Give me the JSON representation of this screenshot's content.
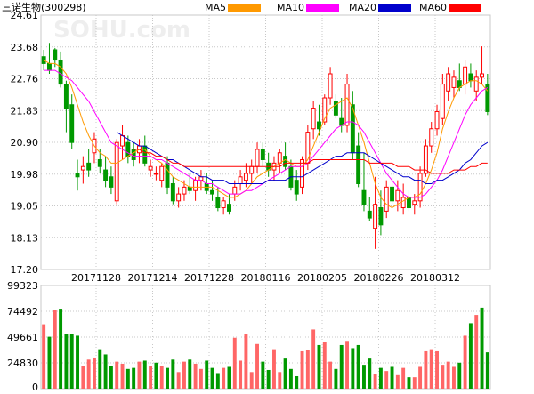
{
  "title": "三诺生物(300298)",
  "watermark": "SOHU.com",
  "legend": [
    {
      "label": "MA5",
      "color": "#ff9900"
    },
    {
      "label": "MA10",
      "color": "#ff00ff"
    },
    {
      "label": "MA20",
      "color": "#0000cc"
    },
    {
      "label": "MA60",
      "color": "#ff0000"
    }
  ],
  "colors": {
    "up": "#ff0000",
    "down": "#009900",
    "grid": "#c8c8c8",
    "axis": "#000000"
  },
  "chart_data": [
    {
      "type": "candlestick",
      "title": "三诺生物(300298)",
      "y_ticks": [
        "24.61",
        "23.68",
        "22.76",
        "21.83",
        "20.90",
        "19.98",
        "19.05",
        "18.13",
        "17.20"
      ],
      "ylim": [
        17.2,
        24.61
      ],
      "x_ticks": [
        "20171128",
        "20171214",
        "20171228",
        "20180116",
        "20180205",
        "20180226",
        "20180312"
      ],
      "grid": true,
      "ohlc": [
        [
          23.4,
          23.6,
          23.0,
          23.2
        ],
        [
          23.2,
          23.8,
          22.9,
          23.0
        ],
        [
          23.6,
          23.65,
          23.1,
          23.3
        ],
        [
          23.3,
          23.55,
          22.5,
          22.6
        ],
        [
          22.6,
          22.7,
          21.2,
          21.9
        ],
        [
          22.0,
          22.3,
          20.7,
          20.9
        ],
        [
          20.0,
          20.4,
          19.5,
          19.9
        ],
        [
          20.1,
          20.5,
          19.7,
          20.2
        ],
        [
          20.3,
          20.7,
          19.9,
          20.1
        ],
        [
          20.6,
          21.2,
          20.3,
          21.0
        ],
        [
          20.4,
          20.7,
          20.0,
          20.2
        ],
        [
          20.1,
          20.5,
          19.6,
          19.8
        ],
        [
          19.9,
          20.2,
          19.4,
          19.6
        ],
        [
          19.2,
          21.0,
          19.1,
          20.9
        ],
        [
          20.8,
          21.4,
          20.4,
          21.1
        ],
        [
          20.9,
          21.1,
          20.3,
          20.5
        ],
        [
          20.7,
          20.9,
          20.2,
          20.4
        ],
        [
          20.6,
          21.0,
          20.3,
          20.8
        ],
        [
          20.8,
          21.1,
          20.2,
          20.3
        ],
        [
          20.1,
          20.4,
          19.9,
          20.2
        ],
        [
          20.0,
          20.2,
          19.8,
          20.0
        ],
        [
          19.8,
          20.3,
          19.6,
          20.2
        ],
        [
          20.3,
          20.5,
          19.4,
          19.6
        ],
        [
          19.7,
          19.9,
          19.1,
          19.2
        ],
        [
          19.2,
          19.6,
          19.0,
          19.4
        ],
        [
          19.4,
          19.8,
          19.2,
          19.6
        ],
        [
          19.6,
          20.0,
          19.4,
          19.5
        ],
        [
          19.5,
          19.9,
          19.2,
          19.8
        ],
        [
          19.8,
          20.1,
          19.5,
          19.9
        ],
        [
          19.7,
          20.0,
          19.4,
          19.5
        ],
        [
          19.5,
          19.8,
          19.2,
          19.4
        ],
        [
          19.3,
          19.6,
          18.9,
          19.0
        ],
        [
          19.0,
          19.3,
          18.8,
          19.2
        ],
        [
          19.1,
          19.4,
          18.8,
          18.9
        ],
        [
          19.4,
          19.8,
          19.2,
          19.6
        ],
        [
          19.7,
          20.1,
          19.5,
          19.9
        ],
        [
          19.8,
          20.3,
          19.6,
          20.0
        ],
        [
          20.0,
          20.4,
          19.7,
          20.2
        ],
        [
          20.2,
          20.9,
          20.0,
          20.7
        ],
        [
          20.7,
          20.9,
          20.2,
          20.4
        ],
        [
          20.3,
          20.6,
          19.9,
          20.1
        ],
        [
          20.1,
          20.5,
          19.8,
          20.3
        ],
        [
          20.3,
          20.7,
          20.0,
          20.6
        ],
        [
          20.5,
          20.9,
          20.1,
          20.2
        ],
        [
          20.2,
          20.4,
          19.5,
          19.6
        ],
        [
          19.8,
          20.1,
          19.2,
          19.4
        ],
        [
          19.6,
          20.5,
          19.4,
          20.4
        ],
        [
          20.3,
          21.4,
          20.1,
          21.2
        ],
        [
          21.3,
          22.1,
          21.0,
          21.9
        ],
        [
          21.5,
          22.0,
          21.1,
          21.3
        ],
        [
          21.5,
          22.3,
          21.4,
          22.2
        ],
        [
          22.2,
          23.1,
          22.0,
          22.9
        ],
        [
          22.1,
          22.3,
          21.6,
          21.7
        ],
        [
          21.6,
          22.2,
          21.2,
          21.4
        ],
        [
          21.4,
          22.9,
          21.2,
          22.6
        ],
        [
          22.0,
          22.4,
          20.4,
          20.6
        ],
        [
          20.8,
          21.2,
          19.6,
          19.7
        ],
        [
          19.5,
          20.6,
          18.9,
          19.1
        ],
        [
          18.9,
          19.3,
          18.6,
          18.7
        ],
        [
          18.4,
          19.9,
          17.8,
          19.1
        ],
        [
          19.0,
          19.5,
          18.2,
          18.5
        ],
        [
          18.9,
          19.8,
          18.7,
          19.6
        ],
        [
          19.6,
          19.9,
          19.1,
          19.2
        ],
        [
          19.2,
          19.8,
          18.9,
          19.5
        ],
        [
          19.0,
          19.7,
          18.8,
          19.3
        ],
        [
          19.3,
          19.5,
          18.9,
          19.0
        ],
        [
          19.1,
          19.4,
          18.8,
          19.2
        ],
        [
          19.2,
          20.2,
          19.0,
          20.0
        ],
        [
          20.0,
          21.0,
          19.9,
          20.8
        ],
        [
          20.8,
          21.5,
          20.6,
          21.3
        ],
        [
          21.3,
          22.0,
          21.1,
          21.8
        ],
        [
          21.6,
          22.9,
          21.4,
          22.6
        ],
        [
          22.4,
          23.1,
          22.1,
          22.9
        ],
        [
          22.5,
          23.0,
          22.2,
          22.8
        ],
        [
          22.7,
          23.2,
          22.4,
          22.5
        ],
        [
          22.6,
          23.3,
          22.3,
          23.1
        ],
        [
          22.9,
          23.2,
          22.5,
          22.7
        ],
        [
          22.4,
          23.0,
          22.1,
          22.8
        ],
        [
          22.8,
          23.7,
          22.6,
          22.9
        ],
        [
          22.6,
          22.9,
          21.7,
          21.8
        ]
      ],
      "ma": {
        "MA5": [
          23.3,
          23.2,
          23.2,
          23.1,
          22.9,
          22.5,
          22.0,
          21.5,
          21.1,
          20.8,
          20.6,
          20.5,
          20.3,
          20.3,
          20.4,
          20.5,
          20.6,
          20.7,
          20.7,
          20.5,
          20.4,
          20.3,
          20.1,
          19.9,
          19.8,
          19.7,
          19.6,
          19.6,
          19.6,
          19.6,
          19.6,
          19.5,
          19.4,
          19.3,
          19.3,
          19.4,
          19.5,
          19.7,
          19.9,
          20.0,
          20.1,
          20.2,
          20.3,
          20.4,
          20.3,
          20.2,
          20.2,
          20.4,
          20.8,
          21.2,
          21.6,
          21.9,
          22.0,
          22.1,
          22.2,
          21.9,
          21.4,
          20.9,
          20.3,
          19.7,
          19.3,
          19.1,
          19.0,
          19.1,
          19.2,
          19.3,
          19.3,
          19.4,
          19.7,
          20.1,
          20.6,
          21.3,
          21.8,
          22.2,
          22.5,
          22.6,
          22.7,
          22.7,
          22.6,
          22.4
        ],
        "MA10": [
          23.0,
          23.0,
          23.0,
          22.9,
          22.8,
          22.7,
          22.5,
          22.3,
          22.1,
          21.8,
          21.5,
          21.2,
          20.9,
          20.8,
          20.7,
          20.6,
          20.5,
          20.5,
          20.5,
          20.5,
          20.4,
          20.4,
          20.3,
          20.2,
          20.1,
          20.0,
          19.9,
          19.8,
          19.8,
          19.7,
          19.7,
          19.6,
          19.5,
          19.4,
          19.4,
          19.4,
          19.5,
          19.5,
          19.6,
          19.7,
          19.8,
          19.9,
          20.0,
          20.1,
          20.2,
          20.2,
          20.2,
          20.3,
          20.5,
          20.7,
          20.9,
          21.1,
          21.3,
          21.4,
          21.5,
          21.5,
          21.4,
          21.2,
          20.9,
          20.6,
          20.3,
          20.0,
          19.8,
          19.6,
          19.4,
          19.3,
          19.3,
          19.3,
          19.4,
          19.6,
          19.8,
          20.1,
          20.5,
          20.9,
          21.3,
          21.7,
          22.0,
          22.2,
          22.4,
          22.5
        ],
        "MA20": [
          null,
          null,
          null,
          null,
          null,
          null,
          null,
          null,
          null,
          null,
          null,
          null,
          null,
          21.2,
          21.1,
          21.0,
          20.9,
          20.8,
          20.8,
          20.7,
          20.6,
          20.5,
          20.4,
          20.4,
          20.3,
          20.2,
          20.1,
          20.0,
          19.9,
          19.9,
          19.8,
          19.8,
          19.8,
          19.7,
          19.7,
          19.7,
          19.7,
          19.7,
          19.7,
          19.7,
          19.8,
          19.8,
          19.8,
          19.8,
          19.9,
          19.9,
          19.9,
          20.0,
          20.1,
          20.2,
          20.3,
          20.4,
          20.5,
          20.5,
          20.6,
          20.6,
          20.6,
          20.6,
          20.5,
          20.4,
          20.3,
          20.2,
          20.1,
          20.0,
          19.9,
          19.9,
          19.8,
          19.8,
          19.7,
          19.7,
          19.8,
          19.8,
          19.9,
          20.0,
          20.1,
          20.3,
          20.4,
          20.6,
          20.8,
          20.9
        ],
        "MA60": [
          null,
          null,
          null,
          null,
          null,
          null,
          null,
          null,
          null,
          null,
          null,
          null,
          null,
          null,
          null,
          null,
          20.7,
          20.7,
          20.6,
          20.6,
          20.5,
          20.5,
          20.4,
          20.3,
          20.3,
          20.2,
          20.2,
          20.2,
          20.2,
          20.2,
          20.2,
          20.2,
          20.2,
          20.2,
          20.2,
          20.2,
          20.2,
          20.2,
          20.2,
          20.2,
          20.2,
          20.2,
          20.2,
          20.3,
          20.3,
          20.3,
          20.3,
          20.3,
          20.4,
          20.4,
          20.4,
          20.4,
          20.4,
          20.4,
          20.4,
          20.4,
          20.4,
          20.4,
          20.3,
          20.3,
          20.3,
          20.3,
          20.3,
          20.2,
          20.2,
          20.2,
          20.1,
          20.1,
          20.1,
          20.0,
          20.0,
          20.0,
          20.0,
          20.1,
          20.1,
          20.1,
          20.2,
          20.2,
          20.3,
          20.3
        ]
      }
    },
    {
      "type": "bar",
      "title": "",
      "y_ticks": [
        "99323",
        "74492",
        "49661",
        "24830",
        "0"
      ],
      "ylim": [
        0,
        99323
      ],
      "volume": [
        62000,
        50000,
        76000,
        77000,
        53000,
        53000,
        51000,
        22000,
        28000,
        30000,
        38000,
        33000,
        22000,
        26000,
        24000,
        19000,
        20000,
        26000,
        27000,
        22000,
        25000,
        22000,
        20000,
        28000,
        16000,
        26000,
        28000,
        24000,
        19000,
        27000,
        20000,
        15000,
        20000,
        21000,
        49000,
        27000,
        53000,
        16000,
        43000,
        26000,
        18000,
        38000,
        16000,
        29000,
        19000,
        12000,
        36000,
        37000,
        57000,
        42000,
        45000,
        26000,
        19000,
        42000,
        46000,
        39000,
        42000,
        23000,
        29000,
        14000,
        20000,
        17000,
        21000,
        13000,
        20000,
        11000,
        11000,
        21000,
        36000,
        38000,
        36000,
        23000,
        26000,
        21000,
        25000,
        51000,
        63000,
        71000,
        78000,
        35000
      ],
      "volume_up": [
        true,
        false,
        true,
        false,
        false,
        false,
        false,
        true,
        true,
        true,
        false,
        false,
        false,
        true,
        true,
        false,
        false,
        true,
        false,
        true,
        false,
        true,
        false,
        false,
        true,
        true,
        false,
        true,
        true,
        false,
        false,
        false,
        true,
        false,
        true,
        true,
        true,
        true,
        true,
        false,
        false,
        true,
        true,
        false,
        false,
        false,
        true,
        true,
        true,
        false,
        true,
        true,
        false,
        false,
        true,
        false,
        false,
        false,
        false,
        true,
        false,
        true,
        false,
        true,
        true,
        false,
        true,
        true,
        true,
        true,
        true,
        true,
        true,
        true,
        false,
        true,
        false,
        true,
        false,
        false
      ]
    }
  ]
}
